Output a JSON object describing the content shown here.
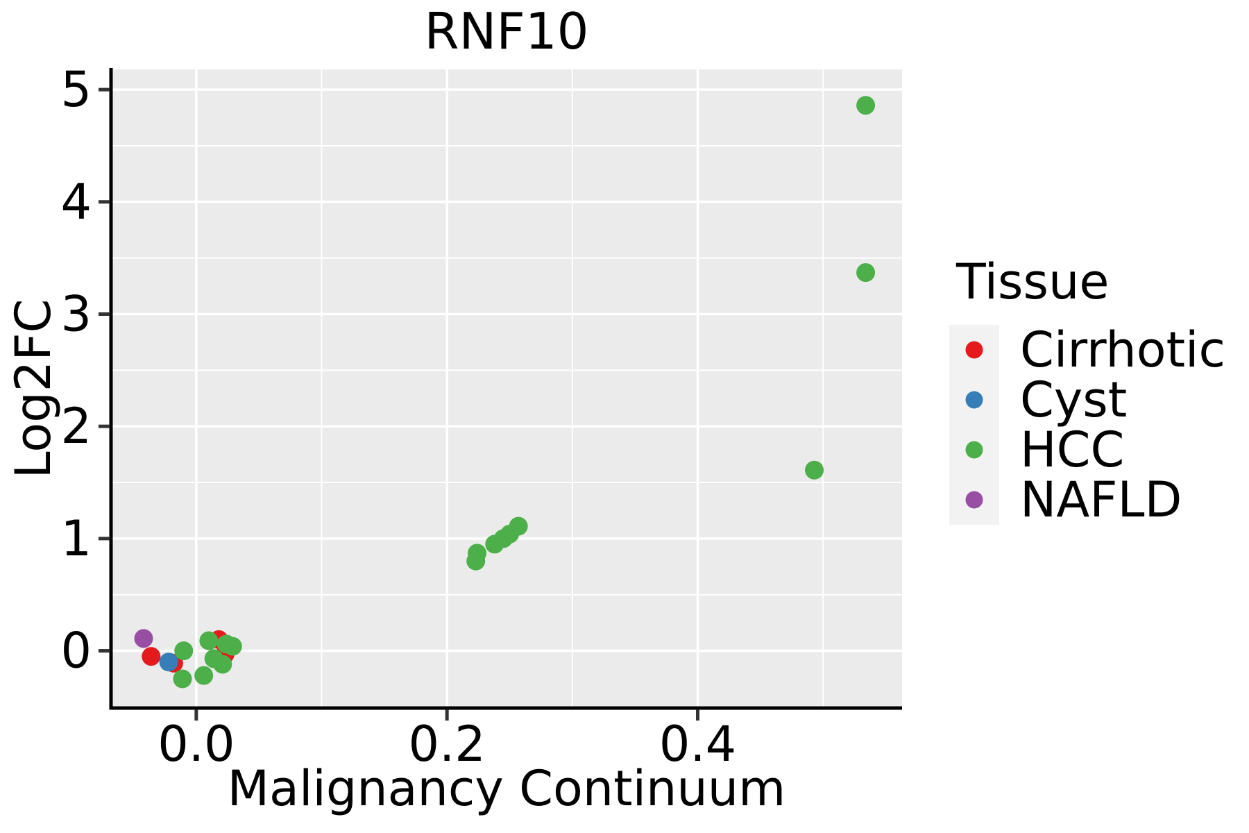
{
  "figure": {
    "title": "RNF10",
    "background": "#ffffff"
  },
  "chart_data": {
    "type": "scatter",
    "title": "RNF10",
    "xlabel": "Malignancy Continuum",
    "ylabel": "Log2FC",
    "xlim": [
      -0.068,
      0.563
    ],
    "ylim": [
      -0.51,
      5.18
    ],
    "x_ticks": [
      0.0,
      0.2,
      0.4
    ],
    "x_tick_labels": [
      "0.0",
      "0.2",
      "0.4"
    ],
    "y_ticks": [
      0,
      1,
      2,
      3,
      4,
      5
    ],
    "y_tick_labels": [
      "0",
      "1",
      "2",
      "3",
      "4",
      "5"
    ],
    "x_minor_gridlines": [
      0.1,
      0.3,
      0.5
    ],
    "y_minor_gridlines": [
      0.5,
      1.5,
      2.5,
      3.5,
      4.5
    ],
    "grid": true,
    "panel_background": "#EBEBEB",
    "gridline_color": "#FFFFFF",
    "axis_line_color": "#000000",
    "tick_mark_color": "#333333",
    "legend_position": "right",
    "legend_title": "Tissue",
    "legend_key_background": "#F2F2F2",
    "series": [
      {
        "name": "Cirrhotic",
        "color": "#E41A1C",
        "points": [
          [
            -0.036,
            -0.05
          ],
          [
            -0.018,
            -0.11
          ],
          [
            0.018,
            0.1
          ],
          [
            0.023,
            -0.03
          ]
        ]
      },
      {
        "name": "Cyst",
        "color": "#377EB8",
        "points": [
          [
            -0.022,
            -0.1
          ]
        ]
      },
      {
        "name": "HCC",
        "color": "#4DAF4A",
        "points": [
          [
            0.534,
            4.86
          ],
          [
            0.534,
            3.37
          ],
          [
            0.493,
            1.61
          ],
          [
            0.257,
            1.11
          ],
          [
            0.25,
            1.04
          ],
          [
            0.245,
            1.0
          ],
          [
            0.238,
            0.95
          ],
          [
            0.224,
            0.87
          ],
          [
            0.223,
            0.8
          ],
          [
            0.029,
            0.04
          ],
          [
            0.024,
            0.06
          ],
          [
            0.021,
            -0.12
          ],
          [
            0.014,
            -0.07
          ],
          [
            0.01,
            0.09
          ],
          [
            0.006,
            -0.22
          ],
          [
            -0.01,
            0.0
          ],
          [
            -0.011,
            -0.25
          ]
        ]
      },
      {
        "name": "NAFLD",
        "color": "#984EA3",
        "points": [
          [
            -0.042,
            0.11
          ]
        ]
      }
    ]
  },
  "legend": {
    "title": "Tissue",
    "items": [
      {
        "label": "Cirrhotic",
        "color": "#E41A1C"
      },
      {
        "label": "Cyst",
        "color": "#377EB8"
      },
      {
        "label": "HCC",
        "color": "#4DAF4A"
      },
      {
        "label": "NAFLD",
        "color": "#984EA3"
      }
    ]
  }
}
